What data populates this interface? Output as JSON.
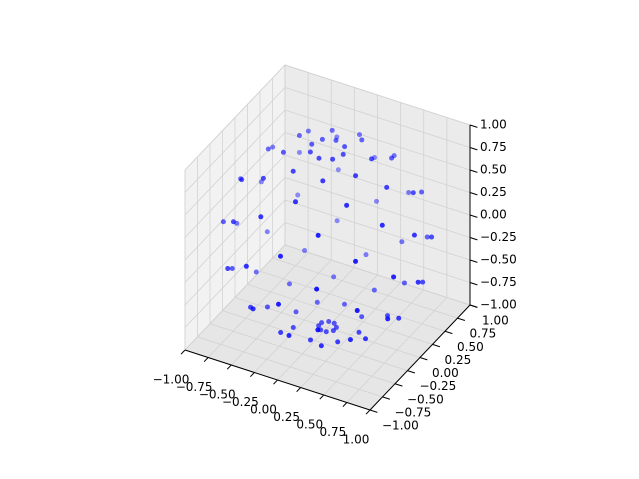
{
  "chart_data": {
    "type": "scatter3d",
    "color": "#0000ff",
    "x": [
      0.17,
      0.12,
      0,
      -0.12,
      -0.17,
      -0.12,
      0,
      0.12,
      0.39,
      0.16,
      -0.16,
      -0.39,
      -0.39,
      -0.16,
      0.16,
      0.39,
      0.64,
      0.45,
      0,
      -0.45,
      -0.64,
      -0.45,
      0,
      0.45,
      0.76,
      0.31,
      -0.31,
      -0.76,
      -0.76,
      -0.31,
      0.31,
      0.76,
      0.94,
      0.66,
      0,
      -0.66,
      -0.94,
      -0.66,
      0,
      0.66,
      0.92,
      0.38,
      -0.38,
      -0.92,
      -0.92,
      -0.38,
      0.38,
      0.92,
      0.98,
      0.7,
      0,
      -0.7,
      -0.98,
      -0.7,
      0,
      0.7,
      0.84,
      0.35,
      -0.35,
      -0.84,
      -0.84,
      -0.35,
      0.35,
      0.84,
      0.77,
      0.54,
      0,
      -0.54,
      -0.77,
      -0.54,
      0,
      0.54,
      0.53,
      0.22,
      -0.22,
      -0.53,
      -0.53,
      -0.22,
      0.22,
      0.53,
      0.34,
      0.24,
      0,
      -0.24,
      -0.34,
      -0.24,
      0,
      0.24,
      0.08,
      0.03,
      -0.03,
      -0.08,
      -0.08,
      -0.03,
      0.03,
      0.08
    ],
    "y": [
      0,
      0.12,
      0.17,
      0.12,
      0,
      -0.12,
      -0.17,
      -0.12,
      0.16,
      0.39,
      0.39,
      0.16,
      -0.16,
      -0.39,
      -0.39,
      -0.16,
      0,
      0.45,
      0.64,
      0.45,
      0,
      -0.45,
      -0.64,
      -0.45,
      0.31,
      0.76,
      0.76,
      0.31,
      -0.31,
      -0.76,
      -0.76,
      -0.31,
      0,
      0.66,
      0.94,
      0.66,
      0,
      -0.66,
      -0.94,
      -0.66,
      0.38,
      0.92,
      0.92,
      0.38,
      -0.38,
      -0.92,
      -0.92,
      -0.38,
      0,
      0.7,
      0.98,
      0.7,
      0,
      -0.7,
      -0.98,
      -0.7,
      0.35,
      0.84,
      0.84,
      0.35,
      -0.35,
      -0.84,
      -0.84,
      -0.35,
      0,
      0.54,
      0.77,
      0.54,
      0,
      -0.54,
      -0.77,
      -0.54,
      0.22,
      0.53,
      0.53,
      0.22,
      -0.22,
      -0.53,
      -0.53,
      -0.22,
      0,
      0.24,
      0.34,
      0.24,
      0,
      -0.24,
      -0.34,
      -0.24,
      0.03,
      0.08,
      0.08,
      0.03,
      -0.03,
      -0.08,
      -0.08,
      -0.03
    ],
    "z": [
      0.98,
      0.98,
      0.98,
      0.98,
      0.98,
      0.98,
      0.98,
      0.98,
      0.91,
      0.91,
      0.91,
      0.91,
      0.91,
      0.91,
      0.91,
      0.91,
      0.77,
      0.77,
      0.77,
      0.77,
      0.77,
      0.77,
      0.77,
      0.77,
      0.57,
      0.57,
      0.57,
      0.57,
      0.57,
      0.57,
      0.57,
      0.57,
      0.34,
      0.34,
      0.34,
      0.34,
      0.34,
      0.34,
      0.34,
      0.34,
      0.09,
      0.09,
      0.09,
      0.09,
      0.09,
      0.09,
      0.09,
      0.09,
      -0.17,
      -0.17,
      -0.17,
      -0.17,
      -0.17,
      -0.17,
      -0.17,
      -0.17,
      -0.42,
      -0.42,
      -0.42,
      -0.42,
      -0.42,
      -0.42,
      -0.42,
      -0.42,
      -0.64,
      -0.64,
      -0.64,
      -0.64,
      -0.64,
      -0.64,
      -0.64,
      -0.64,
      -0.82,
      -0.82,
      -0.82,
      -0.82,
      -0.82,
      -0.82,
      -0.82,
      -0.82,
      -0.94,
      -0.94,
      -0.94,
      -0.94,
      -0.94,
      -0.94,
      -0.94,
      -0.94,
      -0.99,
      -0.99,
      -0.99,
      -0.99,
      -0.99,
      -0.99,
      -0.99,
      -0.99
    ],
    "xlim": [
      -1,
      1
    ],
    "ylim": [
      -1,
      1
    ],
    "zlim": [
      -1,
      1
    ],
    "xticks": [
      {
        "value": -1,
        "label": "−1.00"
      },
      {
        "value": -0.75,
        "label": "−0.75"
      },
      {
        "value": -0.5,
        "label": "−0.50"
      },
      {
        "value": -0.25,
        "label": "−0.25"
      },
      {
        "value": 0,
        "label": "0.00"
      },
      0.25,
      {
        "value": 0.5,
        "label": "0.50"
      },
      0.75,
      {
        "value": 1,
        "label": "1.00"
      }
    ],
    "yticks": [
      {
        "value": -1,
        "label": "−1.00"
      },
      {
        "value": -0.75,
        "label": "−0.75"
      },
      {
        "value": -0.5,
        "label": "−0.50"
      },
      {
        "value": -0.25,
        "label": "−0.25"
      },
      {
        "value": 0,
        "label": "0.00"
      },
      0.25,
      {
        "value": 0.5,
        "label": "0.50"
      },
      0.75,
      {
        "value": 1,
        "label": "1.00"
      }
    ],
    "zticks": [
      {
        "value": -1,
        "label": "−1.00"
      },
      {
        "value": -0.75,
        "label": "−0.75"
      },
      {
        "value": -0.5,
        "label": "−0.50"
      },
      {
        "value": -0.25,
        "label": "−0.25"
      },
      {
        "value": 0,
        "label": "0.00"
      },
      0.25,
      {
        "value": 0.5,
        "label": "0.50"
      },
      0.75,
      {
        "value": 1,
        "label": "1.00"
      }
    ],
    "grid": true
  }
}
